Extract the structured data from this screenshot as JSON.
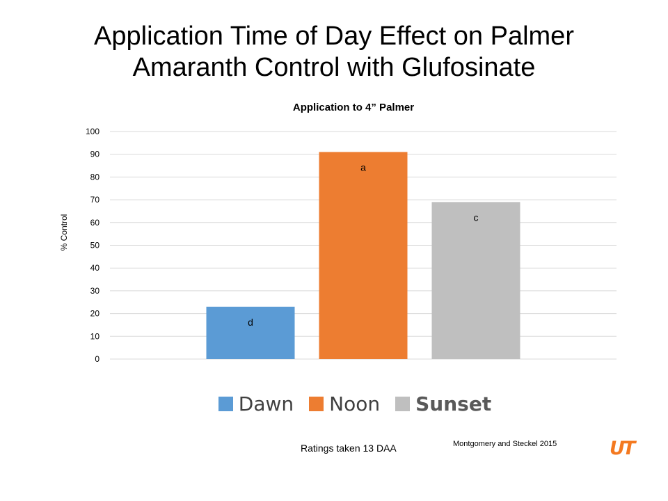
{
  "slide": {
    "title_line1": "Application Time of Day Effect on Palmer",
    "title_line2": "Amaranth Control with Glufosinate",
    "footnote_left": "Ratings taken 13 DAA",
    "footnote_right": "Montgomery and Steckel 2015",
    "logo_text": "UT",
    "logo_color": "#f47920"
  },
  "chart_data": {
    "type": "bar",
    "title": "Application to 4” Palmer",
    "xlabel": "",
    "ylabel": "% Control",
    "ylim": [
      0,
      100
    ],
    "yticks": [
      0,
      10,
      20,
      30,
      40,
      50,
      60,
      70,
      80,
      90,
      100
    ],
    "grid": true,
    "legend_position": "bottom",
    "series": [
      {
        "name": "Dawn",
        "value": 23,
        "label": "d",
        "color": "#5b9bd5"
      },
      {
        "name": "Noon",
        "value": 91,
        "label": "a",
        "color": "#ed7d31"
      },
      {
        "name": "Sunset",
        "value": 69,
        "label": "c",
        "color": "#bfbfbf"
      }
    ]
  }
}
